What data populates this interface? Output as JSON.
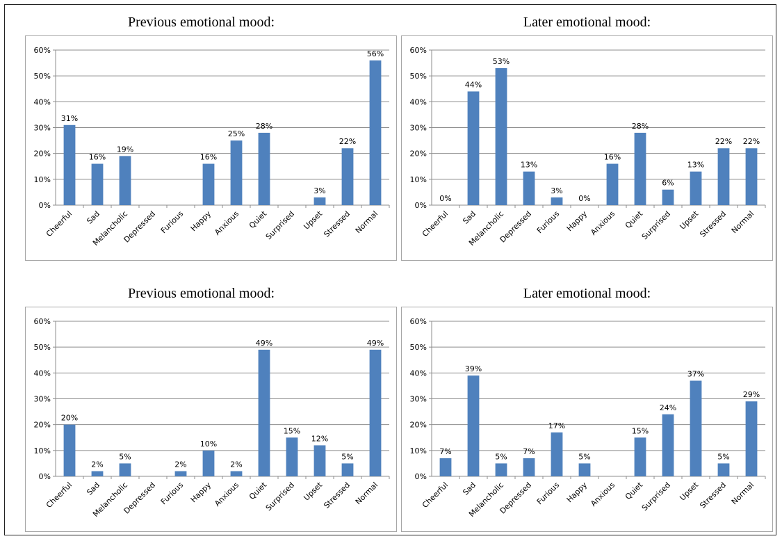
{
  "chart_data": [
    {
      "type": "bar",
      "title": "Previous emotional mood:",
      "categories": [
        "Cheerful",
        "Sad",
        "Melancholic",
        "Depressed",
        "Furious",
        "Happy",
        "Anxious",
        "Quiet",
        "Surprised",
        "Upset",
        "Stressed",
        "Normal"
      ],
      "values": [
        31,
        16,
        19,
        null,
        null,
        16,
        25,
        28,
        null,
        3,
        22,
        56
      ],
      "labels": [
        "31%",
        "16%",
        "19%",
        "",
        "",
        "16%",
        "25%",
        "28%",
        "",
        "3%",
        "22%",
        "56%"
      ],
      "ylim": [
        0,
        60
      ],
      "yticks": [
        "0%",
        "10%",
        "20%",
        "30%",
        "40%",
        "50%",
        "60%"
      ],
      "grid": true,
      "color": "#4f81bd"
    },
    {
      "type": "bar",
      "title": "Later emotional mood:",
      "categories": [
        "Cheerful",
        "Sad",
        "Melancholic",
        "Depressed",
        "Furious",
        "Happy",
        "Anxious",
        "Quiet",
        "Surprised",
        "Upset",
        "Stressed",
        "Normal"
      ],
      "values": [
        0,
        44,
        53,
        13,
        3,
        0,
        16,
        28,
        6,
        13,
        22,
        22
      ],
      "labels": [
        "0%",
        "44%",
        "53%",
        "13%",
        "3%",
        "0%",
        "16%",
        "28%",
        "6%",
        "13%",
        "22%",
        "22%"
      ],
      "ylim": [
        0,
        60
      ],
      "yticks": [
        "0%",
        "10%",
        "20%",
        "30%",
        "40%",
        "50%",
        "60%"
      ],
      "grid": true,
      "color": "#4f81bd"
    },
    {
      "type": "bar",
      "title": "Previous emotional mood:",
      "categories": [
        "Cheerful",
        "Sad",
        "Melancholic",
        "Depressed",
        "Furious",
        "Happy",
        "Anxious",
        "Quiet",
        "Surprised",
        "Upset",
        "Stressed",
        "Normal"
      ],
      "values": [
        20,
        2,
        5,
        null,
        2,
        10,
        2,
        49,
        15,
        12,
        5,
        49
      ],
      "labels": [
        "20%",
        "2%",
        "5%",
        "",
        "2%",
        "10%",
        "2%",
        "49%",
        "15%",
        "12%",
        "5%",
        "49%"
      ],
      "ylim": [
        0,
        60
      ],
      "yticks": [
        "0%",
        "10%",
        "20%",
        "30%",
        "40%",
        "50%",
        "60%"
      ],
      "grid": true,
      "color": "#4f81bd"
    },
    {
      "type": "bar",
      "title": "Later emotional mood:",
      "categories": [
        "Cheerful",
        "Sad",
        "Melancholic",
        "Depressed",
        "Furious",
        "Happy",
        "Anxious",
        "Quiet",
        "Surprised",
        "Upset",
        "Stressed",
        "Normal"
      ],
      "values": [
        7,
        39,
        5,
        7,
        17,
        5,
        null,
        15,
        24,
        37,
        5,
        29
      ],
      "labels": [
        "7%",
        "39%",
        "5%",
        "7%",
        "17%",
        "5%",
        "",
        "15%",
        "24%",
        "37%",
        "5%",
        "29%"
      ],
      "ylim": [
        0,
        60
      ],
      "yticks": [
        "0%",
        "10%",
        "20%",
        "30%",
        "40%",
        "50%",
        "60%"
      ],
      "grid": true,
      "color": "#4f81bd"
    }
  ]
}
